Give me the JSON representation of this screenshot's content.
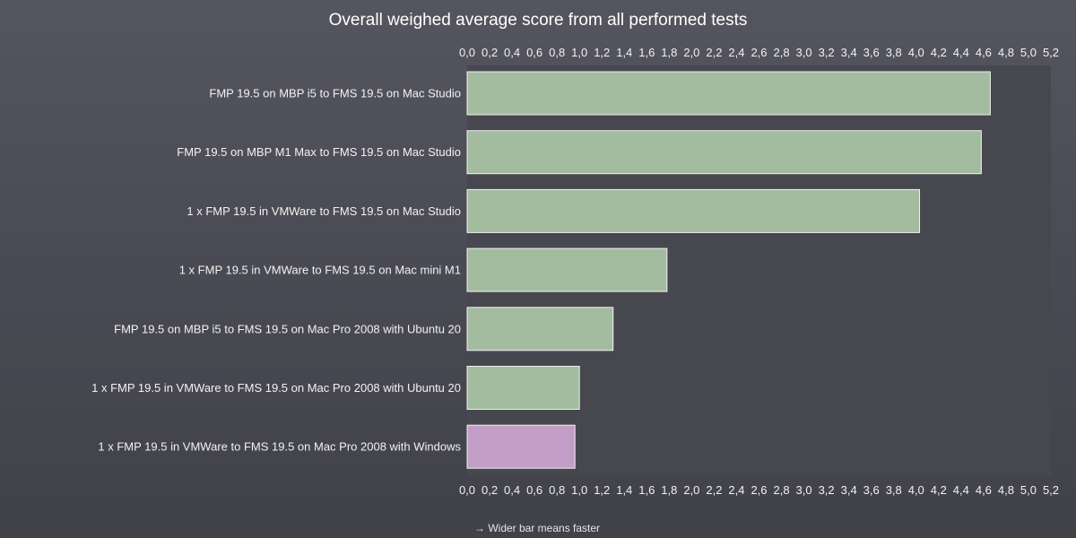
{
  "chart_data": {
    "type": "bar",
    "orientation": "horizontal",
    "title": "Overall weighed average score from all performed tests",
    "footnote": "→ Wider bar means faster",
    "xlim": [
      0,
      5.2
    ],
    "tick_step": 0.2,
    "tick_labels": [
      "0,0",
      "0,2",
      "0,4",
      "0,6",
      "0,8",
      "1,0",
      "1,2",
      "1,4",
      "1,6",
      "1,8",
      "2,0",
      "2,2",
      "2,4",
      "2,6",
      "2,8",
      "3,0",
      "3,2",
      "3,4",
      "3,6",
      "3,8",
      "4,0",
      "4,2",
      "4,4",
      "4,6",
      "4,8",
      "5,0",
      "5,2"
    ],
    "tick_label_positions": [
      "top",
      "bottom"
    ],
    "grid": false,
    "legend": "none",
    "categories": [
      "FMP 19.5 on MBP i5 to FMS 19.5 on Mac Studio",
      "FMP 19.5 on MBP M1 Max to FMS 19.5 on Mac Studio",
      "1 x FMP 19.5 in VMWare to FMS 19.5 on Mac Studio",
      "1 x FMP 19.5 in VMWare to FMS 19.5 on Mac mini M1",
      "FMP 19.5 on MBP i5 to FMS 19.5 on Mac Pro 2008 with Ubuntu 20",
      "1 x FMP 19.5 in VMWare to FMS 19.5 on Mac Pro 2008 with Ubuntu 20",
      "1 x FMP 19.5 in VMWare to FMS 19.5 on Mac Pro 2008 with Windows"
    ],
    "values": [
      4.66,
      4.58,
      4.03,
      1.78,
      1.3,
      1.0,
      0.96
    ],
    "bar_colors": [
      "#a3bc9f",
      "#a3bc9f",
      "#a3bc9f",
      "#a3bc9f",
      "#a3bc9f",
      "#a3bc9f",
      "#c39ec7"
    ],
    "colors": {
      "background": "#4b4b55",
      "plot_area": "#47474f",
      "text": "#f2f2f2"
    }
  }
}
